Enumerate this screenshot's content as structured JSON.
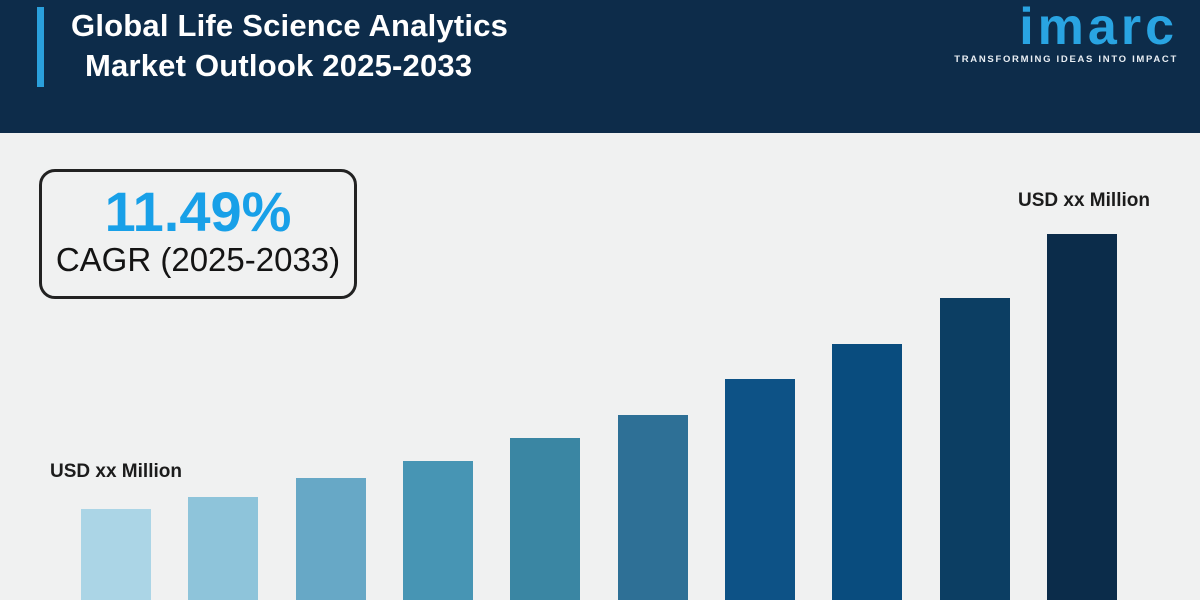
{
  "background_color": "#f0f1f1",
  "header": {
    "title_line1": "Global Life Science Analytics",
    "title_line2": "Market Outlook 2025-2033",
    "background_color": "#0d2c4a",
    "accent_color": "#2aa0dc",
    "text_color": "#ffffff",
    "logo": {
      "text": "imarc",
      "tagline": "TRANSFORMING IDEAS INTO IMPACT",
      "color": "#29a4e2"
    }
  },
  "cagr_box": {
    "value": "11.49%",
    "label": "CAGR (2025-2033)",
    "value_color": "#18a0e8",
    "border_color": "#222222"
  },
  "chart_data": {
    "type": "bar",
    "title": "Global Life Science Analytics Market Outlook 2025-2033",
    "unit_label_left": "USD xx Million",
    "unit_label_right": "USD xx Million",
    "num_bars": 10,
    "x_tick_labels_visible": false,
    "values_note": "actual values masked as 'xx' in source; bar heights below are relative pixel heights read from the chart",
    "values": [
      91,
      103,
      122,
      139,
      162,
      185,
      221,
      256,
      302,
      366
    ],
    "bar_colors": [
      "#abd5e6",
      "#8ec4da",
      "#67a8c6",
      "#4795b4",
      "#3a86a3",
      "#2e7096",
      "#0d5286",
      "#094c7e",
      "#0c3e63",
      "#0b2c4a"
    ],
    "grid": false,
    "legend": false,
    "baseline": "bottom edge of image, no visible axis line"
  }
}
